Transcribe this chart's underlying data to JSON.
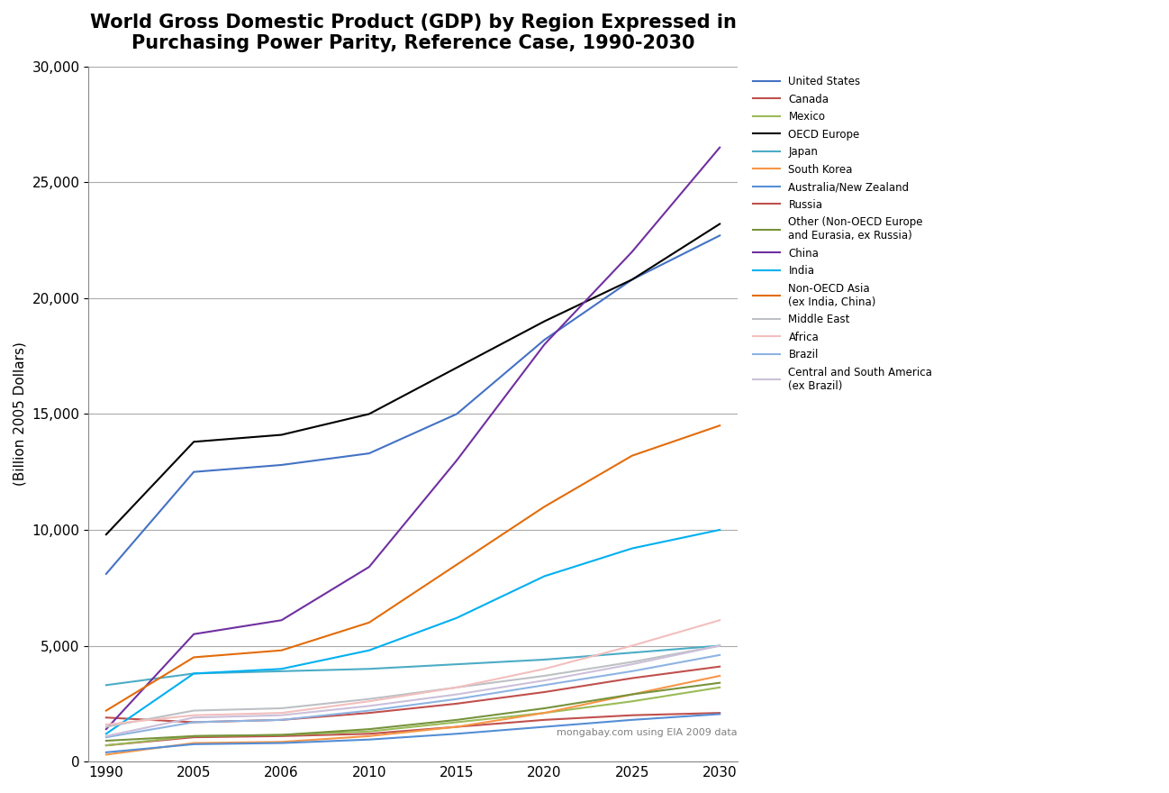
{
  "title": "World Gross Domestic Product (GDP) by Region Expressed in\nPurchasing Power Parity, Reference Case, 1990-2030",
  "ylabel": "(Billion 2005 Dollars)",
  "watermark": "mongabay.com using EIA 2009 data",
  "x_labels": [
    "1990",
    "2005",
    "2006",
    "2010",
    "2015",
    "2020",
    "2025",
    "2030"
  ],
  "ylim": [
    0,
    30000
  ],
  "yticks": [
    0,
    5000,
    10000,
    15000,
    20000,
    25000,
    30000
  ],
  "series": [
    {
      "label": "United States",
      "color": "#4472C4",
      "data": [
        8100,
        12500,
        12800,
        13300,
        15000,
        18200,
        20800,
        22700
      ]
    },
    {
      "label": "Canada",
      "color": "#C0504D",
      "data": [
        700,
        1050,
        1100,
        1200,
        1500,
        1800,
        2000,
        2100
      ]
    },
    {
      "label": "Mexico",
      "color": "#9BBB59",
      "data": [
        700,
        1100,
        1150,
        1300,
        1700,
        2100,
        2600,
        3200
      ]
    },
    {
      "label": "OECD Europe",
      "color": "#000000",
      "data": [
        9800,
        13800,
        14100,
        15000,
        17000,
        19000,
        20800,
        23200
      ]
    },
    {
      "label": "Japan",
      "color": "#4BACC6",
      "data": [
        3300,
        3800,
        3900,
        4000,
        4200,
        4400,
        4700,
        5000
      ]
    },
    {
      "label": "South Korea",
      "color": "#F79646",
      "data": [
        300,
        800,
        850,
        1100,
        1500,
        2100,
        2900,
        3700
      ]
    },
    {
      "label": "Australia/New Zealand",
      "color": "#4472C4",
      "data": [
        400,
        750,
        800,
        950,
        1200,
        1500,
        1800,
        2050
      ]
    },
    {
      "label": "Russia",
      "color": "#C0504D",
      "data": [
        1900,
        1700,
        1800,
        2100,
        2500,
        3000,
        3600,
        4100
      ]
    },
    {
      "label": "Other (Non-OECD Europe\nand Eurasia, ex Russia)",
      "color": "#77933C",
      "data": [
        900,
        1100,
        1150,
        1400,
        1800,
        2300,
        2900,
        3400
      ]
    },
    {
      "label": "China",
      "color": "#7030A0",
      "data": [
        1400,
        5500,
        6100,
        8400,
        13000,
        18000,
        22000,
        26500
      ]
    },
    {
      "label": "India",
      "color": "#00B0F0",
      "data": [
        1200,
        3800,
        4000,
        4800,
        6200,
        8000,
        9200,
        10000
      ]
    },
    {
      "label": "Non-OECD Asia\n(ex India, China)",
      "color": "#E36C09",
      "data": [
        2200,
        4500,
        4800,
        6000,
        8500,
        11000,
        13200,
        14500
      ]
    },
    {
      "label": "Middle East",
      "color": "#BDC0C4",
      "data": [
        1500,
        2200,
        2300,
        2700,
        3200,
        3700,
        4300,
        5000
      ]
    },
    {
      "label": "Africa",
      "color": "#F2BFBE",
      "data": [
        1600,
        2000,
        2100,
        2600,
        3200,
        4000,
        5000,
        6100
      ]
    },
    {
      "label": "Brazil",
      "color": "#8DB4E2",
      "data": [
        1050,
        1700,
        1800,
        2200,
        2700,
        3300,
        3900,
        4600
      ]
    },
    {
      "label": "Central and South America\n(ex Brazil)",
      "color": "#CCC0DA",
      "data": [
        1100,
        1900,
        2000,
        2400,
        2900,
        3500,
        4200,
        5000
      ]
    }
  ]
}
